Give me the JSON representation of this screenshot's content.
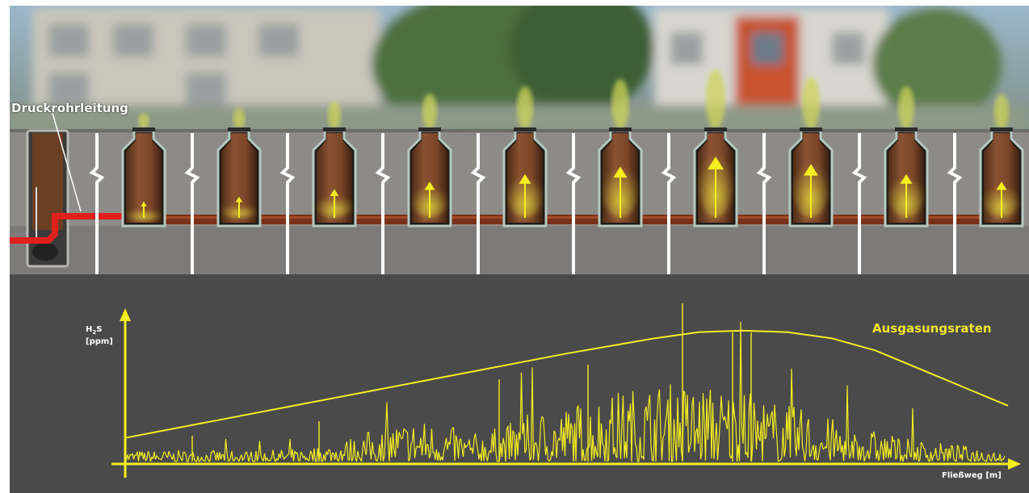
{
  "labels": {
    "pipe": "Druckrohrleitung",
    "curve": "Ausgasungsraten",
    "y_axis_main": "H",
    "y_axis_sub": "2",
    "y_axis_tail": "S",
    "y_axis_unit": "[ppm]",
    "x_axis": "Fließweg [m]"
  },
  "colors": {
    "sky": "#8fb3cf",
    "concrete": "#8d8b88",
    "concrete_dark": "#737170",
    "lower_panel": "#4a4a4b",
    "shaft_fill": "#7a4a2c",
    "gas": "#d8d23a",
    "pressure_pipe": "#e0201c",
    "sewer_pipe": "#8a3a1e",
    "yellow": "#f5ee1e"
  },
  "shafts": {
    "count": 10,
    "gas_level": [
      0.1,
      0.2,
      0.35,
      0.5,
      0.65,
      0.8,
      1.0,
      0.85,
      0.65,
      0.5
    ]
  },
  "chart_data": {
    "type": "line",
    "title": "Ausgasungsraten",
    "xlabel": "Fließweg [m]",
    "ylabel": "H2S [ppm]",
    "series": [
      {
        "name": "Ausgasungsraten",
        "description_free": true,
        "x": [
          0,
          0.1,
          0.2,
          0.3,
          0.4,
          0.5,
          0.6,
          0.65,
          0.7,
          0.75,
          0.8,
          0.85,
          0.9,
          0.95,
          1.0
        ],
        "y": [
          0.17,
          0.28,
          0.39,
          0.5,
          0.61,
          0.72,
          0.82,
          0.86,
          0.87,
          0.86,
          0.82,
          0.74,
          0.62,
          0.5,
          0.38
        ]
      }
    ]
  }
}
